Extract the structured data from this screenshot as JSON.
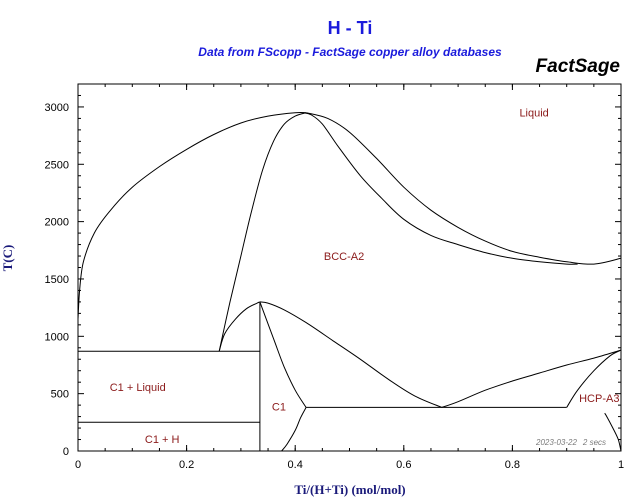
{
  "header": {
    "title": "H - Ti",
    "subtitle": "Data from FScopp - FactSage copper alloy databases",
    "brand": "FactSage"
  },
  "footer": {
    "date": "2023-03-22",
    "duration": "2 secs"
  },
  "colors": {
    "title": "#1a1adc",
    "axis_label": "#1a1a7a",
    "region_label": "#8b1a1a",
    "lines": "#000000"
  },
  "chart_data": {
    "type": "line",
    "title": "H - Ti",
    "subtitle": "Data from FScopp - FactSage copper alloy databases",
    "xlabel": "Ti/(H+Ti) (mol/mol)",
    "ylabel": "T(C)",
    "xlim": [
      0,
      1
    ],
    "ylim": [
      0,
      3200
    ],
    "x_ticks": [
      0,
      0.2,
      0.4,
      0.6,
      0.8,
      1
    ],
    "x_tick_labels": [
      "0",
      "0.2",
      "0.4",
      "0.6",
      "0.8",
      "1"
    ],
    "y_ticks": [
      0,
      500,
      1000,
      1500,
      2000,
      2500,
      3000
    ],
    "y_tick_labels": [
      "0",
      "500",
      "1000",
      "1500",
      "2000",
      "2500",
      "3000"
    ],
    "grid": false,
    "region_labels": [
      {
        "text": "Liquid",
        "x": 0.84,
        "y": 2950
      },
      {
        "text": "BCC-A2",
        "x": 0.49,
        "y": 1700
      },
      {
        "text": "C1 + Liquid",
        "x": 0.11,
        "y": 560
      },
      {
        "text": "C1",
        "x": 0.37,
        "y": 390
      },
      {
        "text": "HCP-A3",
        "x": 0.96,
        "y": 460
      },
      {
        "text": "C1 + H",
        "x": 0.155,
        "y": 105
      }
    ],
    "series": [
      {
        "x": [
          0,
          0.003,
          0.01,
          0.03,
          0.06,
          0.1,
          0.15,
          0.2,
          0.25,
          0.3,
          0.35,
          0.4,
          0.42
        ],
        "y": [
          1150,
          1400,
          1650,
          1900,
          2100,
          2300,
          2480,
          2630,
          2760,
          2860,
          2920,
          2950,
          2950
        ]
      },
      {
        "x": [
          0.42,
          0.46,
          0.5,
          0.55,
          0.6,
          0.65,
          0.7,
          0.75,
          0.8,
          0.85,
          0.9,
          0.95,
          1
        ],
        "y": [
          2950,
          2900,
          2780,
          2550,
          2300,
          2100,
          1950,
          1830,
          1740,
          1690,
          1650,
          1630,
          1680
        ]
      },
      {
        "x": [
          0.415,
          0.43,
          0.45,
          0.48,
          0.52,
          0.56,
          0.6,
          0.65,
          0.7,
          0.75,
          0.8,
          0.85,
          0.9,
          0.92
        ],
        "y": [
          2950,
          2930,
          2850,
          2650,
          2400,
          2200,
          2020,
          1880,
          1800,
          1730,
          1680,
          1650,
          1630,
          1630
        ]
      },
      {
        "x": [
          0.26,
          0.28,
          0.3,
          0.32,
          0.34,
          0.36,
          0.38,
          0.4,
          0.42
        ],
        "y": [
          870,
          1300,
          1700,
          2100,
          2450,
          2700,
          2850,
          2920,
          2950
        ]
      },
      {
        "x": [
          0.26,
          0.27,
          0.29,
          0.31,
          0.33,
          0.335
        ],
        "y": [
          870,
          1020,
          1150,
          1240,
          1290,
          1300
        ]
      },
      {
        "x": [
          0.335,
          0.35,
          0.38,
          0.42,
          0.47,
          0.52,
          0.57,
          0.62,
          0.67
        ],
        "y": [
          1300,
          1290,
          1230,
          1120,
          960,
          800,
          630,
          480,
          380
        ]
      },
      {
        "x": [
          0.335,
          0.36,
          0.38,
          0.4,
          0.42
        ],
        "y": [
          1300,
          980,
          730,
          530,
          380
        ]
      },
      {
        "x": [
          0.42,
          0.67,
          0.9
        ],
        "y": [
          380,
          380,
          380
        ]
      },
      {
        "x": [
          0.67,
          0.7,
          0.75,
          0.8,
          0.85,
          0.9,
          0.95,
          1
        ],
        "y": [
          380,
          430,
          530,
          610,
          680,
          750,
          810,
          880
        ]
      },
      {
        "x": [
          0.9,
          0.92,
          0.95,
          0.98,
          1
        ],
        "y": [
          380,
          530,
          700,
          830,
          880
        ]
      },
      {
        "x": [
          0.42,
          0.41,
          0.4,
          0.385,
          0.375
        ],
        "y": [
          380,
          290,
          180,
          60,
          0
        ]
      },
      {
        "x": [
          1,
          0.995,
          0.985,
          0.975,
          0.97
        ],
        "y": [
          0,
          100,
          200,
          290,
          330
        ]
      },
      {
        "x": [
          0,
          0.335
        ],
        "y": [
          870,
          870
        ]
      },
      {
        "x": [
          0,
          0.335
        ],
        "y": [
          250,
          250
        ]
      },
      {
        "x": [
          0.335,
          0.335
        ],
        "y": [
          0,
          1300
        ]
      }
    ]
  }
}
